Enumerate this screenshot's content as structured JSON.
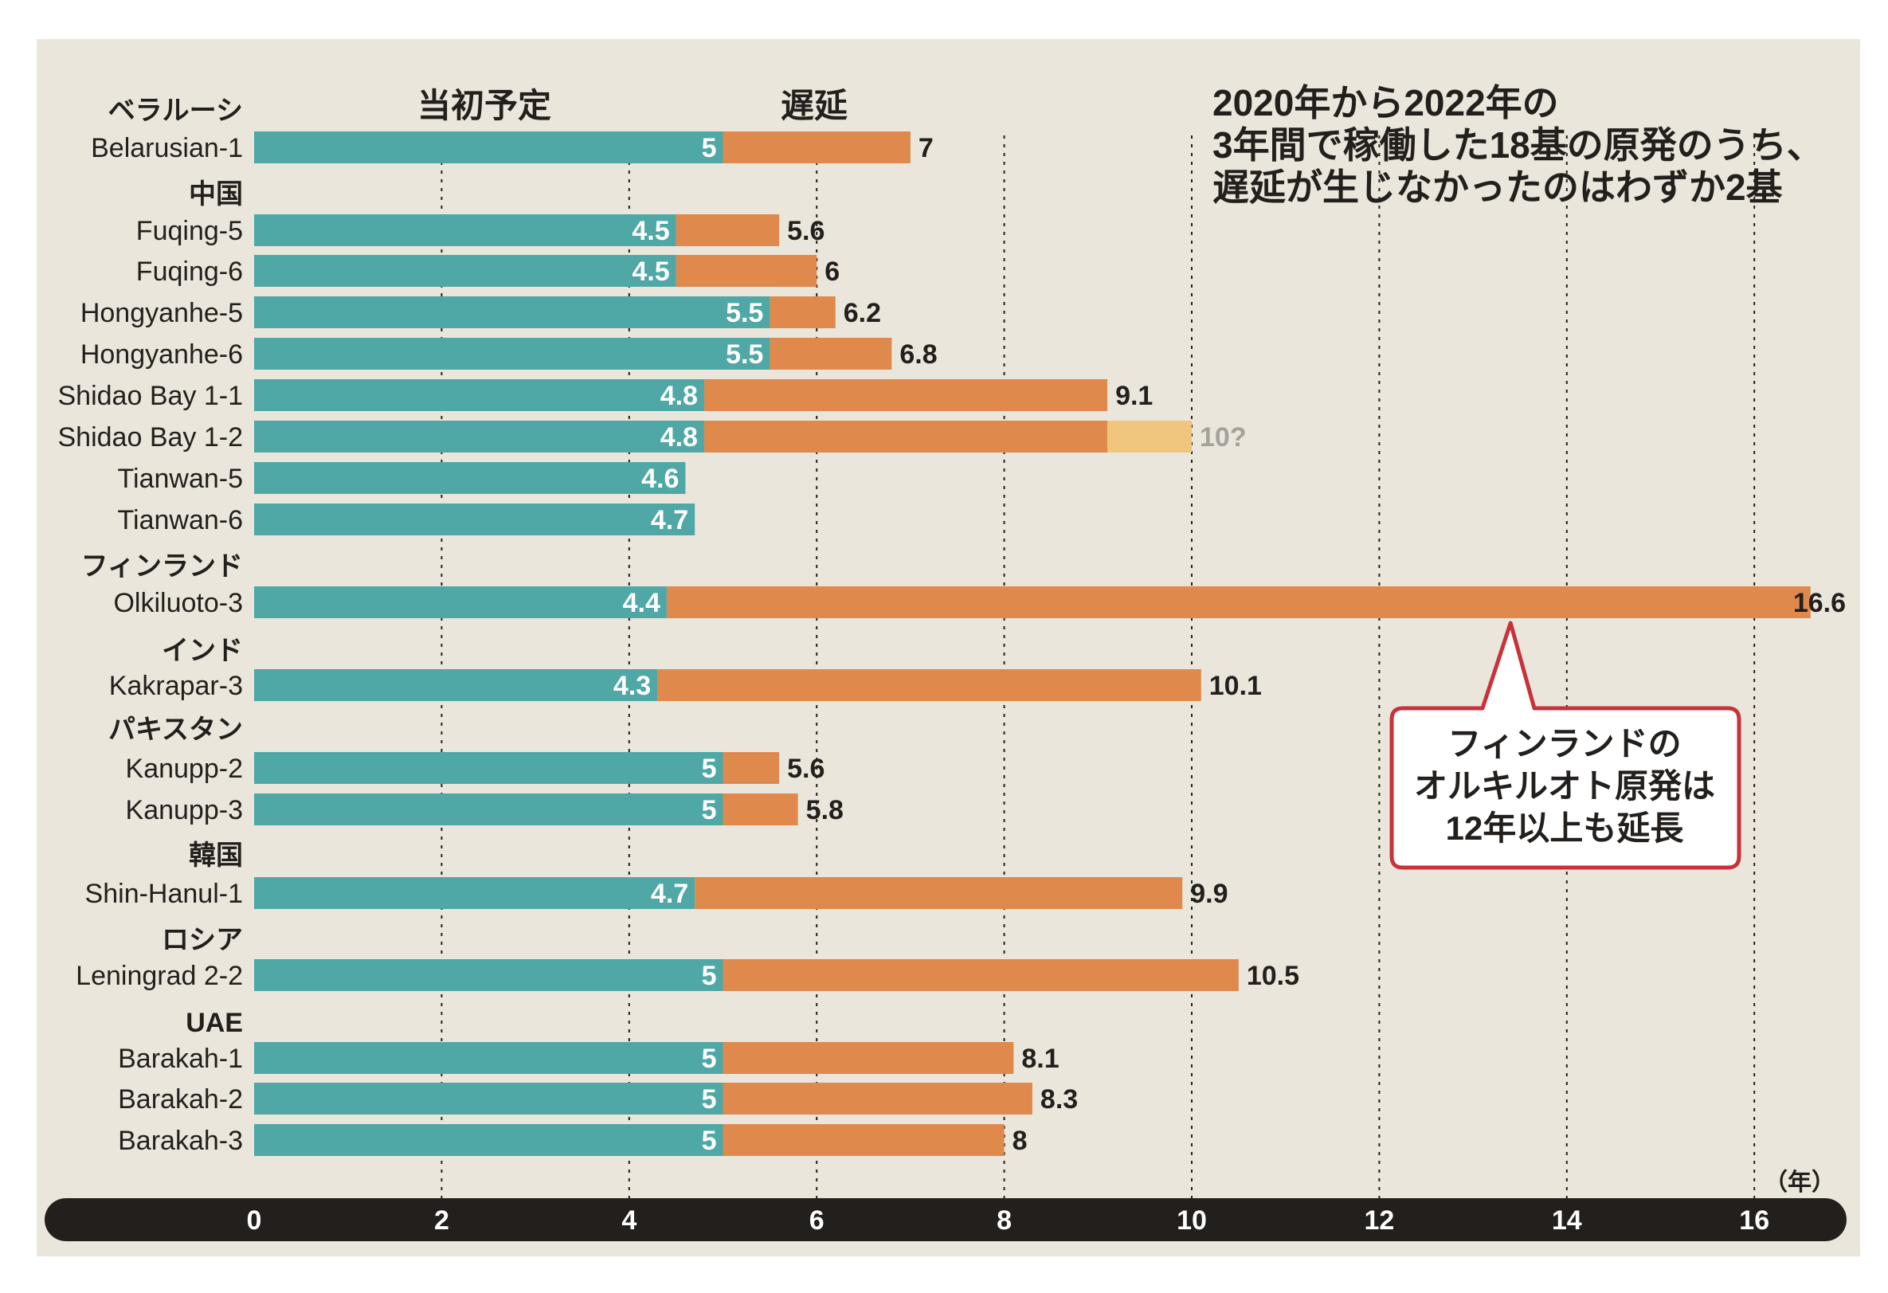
{
  "chart_data": {
    "type": "bar",
    "subtype": "stacked-horizontal",
    "title_lines": [
      "2020年から2022年の",
      "3年間で稼働した18基の原発のうち、",
      "遅延が生じなかったのはわずか2基"
    ],
    "legend": [
      "当初予定",
      "遅延"
    ],
    "legend_placement": "top",
    "x_unit": "（年）",
    "xlim": [
      0,
      16.8
    ],
    "x_ticks": [
      "0",
      "2",
      "4",
      "6",
      "8",
      "10",
      "12",
      "14",
      "16"
    ],
    "grid": "vertical dotted",
    "colors": {
      "planned": "#4fa8a5",
      "delay": "#e0894c",
      "estimated": "#f0c67e",
      "background": "#ebe6dc",
      "axis": "#231f1c",
      "callout": "#c8323a"
    },
    "groups": [
      {
        "country": "ベラルーシ",
        "items": [
          {
            "name": "Belarusian-1",
            "planned": 5,
            "actual": 7,
            "planned_label": "5",
            "actual_label": "7"
          }
        ]
      },
      {
        "country": "中国",
        "items": [
          {
            "name": "Fuqing-5",
            "planned": 4.5,
            "actual": 5.6,
            "planned_label": "4.5",
            "actual_label": "5.6"
          },
          {
            "name": "Fuqing-6",
            "planned": 4.5,
            "actual": 6,
            "planned_label": "4.5",
            "actual_label": "6"
          },
          {
            "name": "Hongyanhe-5",
            "planned": 5.5,
            "actual": 6.2,
            "planned_label": "5.5",
            "actual_label": "6.2"
          },
          {
            "name": "Hongyanhe-6",
            "planned": 5.5,
            "actual": 6.8,
            "planned_label": "5.5",
            "actual_label": "6.8"
          },
          {
            "name": "Shidao Bay 1-1",
            "planned": 4.8,
            "actual": 9.1,
            "planned_label": "4.8",
            "actual_label": "9.1"
          },
          {
            "name": "Shidao Bay 1-2",
            "planned": 4.8,
            "actual": 9.1,
            "estimated": 10,
            "planned_label": "4.8",
            "actual_label": "10?"
          },
          {
            "name": "Tianwan-5",
            "planned": 4.6,
            "actual": 4.6,
            "planned_label": "4.6",
            "actual_label": ""
          },
          {
            "name": "Tianwan-6",
            "planned": 4.7,
            "actual": 4.7,
            "planned_label": "4.7",
            "actual_label": ""
          }
        ]
      },
      {
        "country": "フィンランド",
        "items": [
          {
            "name": "Olkiluoto-3",
            "planned": 4.4,
            "actual": 16.6,
            "planned_label": "4.4",
            "actual_label": "16.6"
          }
        ]
      },
      {
        "country": "インド",
        "items": [
          {
            "name": "Kakrapar-3",
            "planned": 4.3,
            "actual": 10.1,
            "planned_label": "4.3",
            "actual_label": "10.1"
          }
        ]
      },
      {
        "country": "パキスタン",
        "items": [
          {
            "name": "Kanupp-2",
            "planned": 5,
            "actual": 5.6,
            "planned_label": "5",
            "actual_label": "5.6"
          },
          {
            "name": "Kanupp-3",
            "planned": 5,
            "actual": 5.8,
            "planned_label": "5",
            "actual_label": "5.8"
          }
        ]
      },
      {
        "country": "韓国",
        "items": [
          {
            "name": "Shin-Hanul-1",
            "planned": 4.7,
            "actual": 9.9,
            "planned_label": "4.7",
            "actual_label": "9.9"
          }
        ]
      },
      {
        "country": "ロシア",
        "items": [
          {
            "name": "Leningrad 2-2",
            "planned": 5,
            "actual": 10.5,
            "planned_label": "5",
            "actual_label": "10.5"
          }
        ]
      },
      {
        "country": "UAE",
        "items": [
          {
            "name": "Barakah-1",
            "planned": 5,
            "actual": 8.1,
            "planned_label": "5",
            "actual_label": "8.1"
          },
          {
            "name": "Barakah-2",
            "planned": 5,
            "actual": 8.3,
            "planned_label": "5",
            "actual_label": "8.3"
          },
          {
            "name": "Barakah-3",
            "planned": 5,
            "actual": 8,
            "planned_label": "5",
            "actual_label": "8"
          }
        ]
      }
    ],
    "annotation": {
      "lines": [
        "フィンランドの",
        "オルキルオト原発は",
        "12年以上も延長"
      ],
      "target": "Olkiluoto-3",
      "at_x": 13.4
    }
  }
}
